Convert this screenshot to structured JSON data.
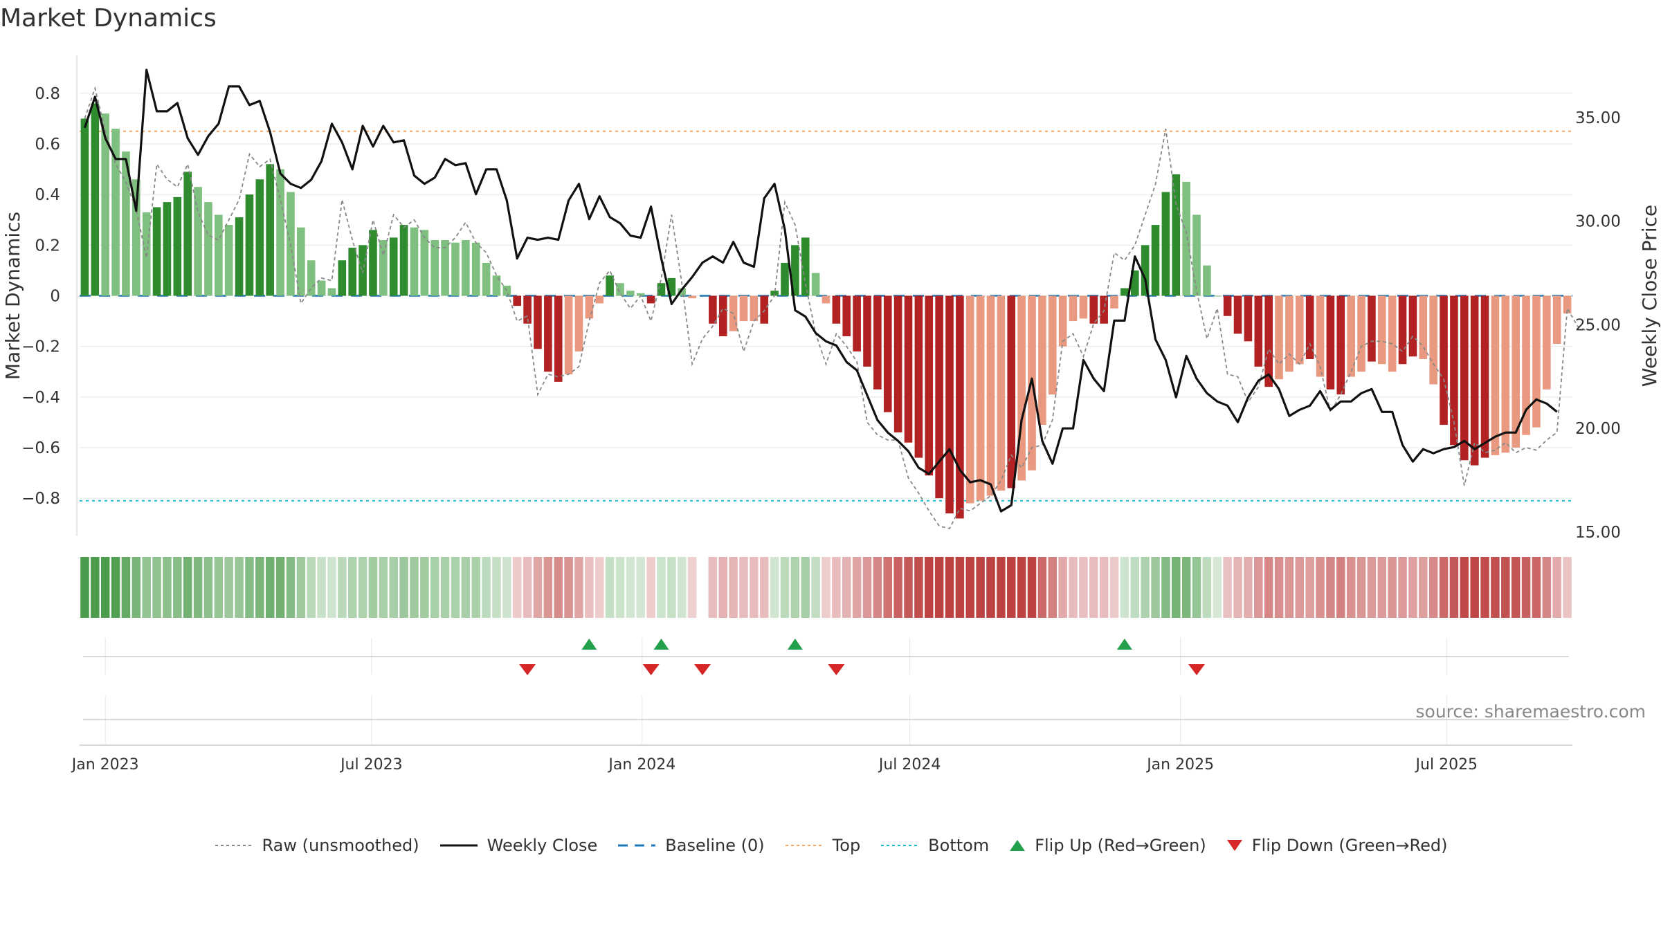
{
  "page": {
    "title": "Market Dynamics",
    "source": "source: sharemaestro.com"
  },
  "colors": {
    "strong_green": "#2e8b2e",
    "light_green": "#7fbf7f",
    "strong_red": "#b22222",
    "light_red": "#e8997f",
    "close_line": "#111111",
    "raw_line": "#888888",
    "baseline": "#1f77b4",
    "top": "#f4a460",
    "bottom": "#17becf",
    "flip_up": "#22a04b",
    "flip_down": "#d62728"
  },
  "legend": [
    {
      "key": "raw",
      "label": "Raw (unsmoothed)",
      "icon": "dotted-line-icon"
    },
    {
      "key": "close",
      "label": "Weekly Close",
      "icon": "solid-line-icon"
    },
    {
      "key": "baseline",
      "label": "Baseline (0)",
      "icon": "dashed-line-icon"
    },
    {
      "key": "top",
      "label": "Top",
      "icon": "dotted-line-icon"
    },
    {
      "key": "bottom",
      "label": "Bottom",
      "icon": "dotted-line-icon"
    },
    {
      "key": "flip_up",
      "label": "Flip Up (Red→Green)",
      "icon": "triangle-up-icon"
    },
    {
      "key": "flip_down",
      "label": "Flip Down (Green→Red)",
      "icon": "triangle-down-icon"
    }
  ],
  "chart_data": {
    "type": "bar",
    "y_axis_left": {
      "label": "Market Dynamics",
      "range": [
        -0.95,
        0.95
      ],
      "ticks": [
        0.8,
        0.6,
        0.4,
        0.2,
        0,
        -0.2,
        -0.4,
        -0.6,
        -0.8
      ],
      "tick_labels": [
        "0.8",
        "0.6",
        "0.4",
        "0.2",
        "0",
        "−0.2",
        "−0.4",
        "−0.6",
        "−0.8"
      ]
    },
    "y_axis_right": {
      "label": "Weekly Close Price",
      "range": [
        14.8,
        38.0
      ],
      "ticks": [
        35,
        30,
        25,
        20,
        15
      ],
      "tick_labels": [
        "35.00",
        "30.00",
        "25.00",
        "20.00",
        "15.00"
      ]
    },
    "x_axis": {
      "ticks": [
        "2023-01-01",
        "2023-07-01",
        "2024-01-01",
        "2024-07-01",
        "2025-01-01",
        "2025-07-01"
      ],
      "tick_labels": [
        "Jan 2023",
        "Jul 2023",
        "Jan 2024",
        "Jul 2024",
        "Jan 2025",
        "Jul 2025"
      ]
    },
    "reference_lines": {
      "baseline": 0,
      "top": 0.65,
      "bottom": -0.81
    },
    "weeks": {
      "first": "2022-12-18",
      "interval_days": 7,
      "count": 145,
      "missing_index": 60
    },
    "dynamics": [
      0.7,
      0.76,
      0.72,
      0.66,
      0.57,
      0.46,
      0.33,
      0.35,
      0.37,
      0.39,
      0.49,
      0.43,
      0.37,
      0.32,
      0.28,
      0.31,
      0.4,
      0.46,
      0.52,
      0.5,
      0.41,
      0.27,
      0.14,
      0.06,
      0.03,
      0.14,
      0.19,
      0.2,
      0.26,
      0.22,
      0.23,
      0.28,
      0.27,
      0.26,
      0.22,
      0.22,
      0.21,
      0.22,
      0.21,
      0.13,
      0.08,
      0.04,
      -0.04,
      -0.11,
      -0.21,
      -0.3,
      -0.34,
      -0.31,
      -0.22,
      -0.09,
      -0.03,
      0.08,
      0.05,
      0.02,
      0.01,
      -0.03,
      0.05,
      0.07,
      0.03,
      -0.01,
      0.0,
      -0.11,
      -0.16,
      -0.14,
      -0.1,
      -0.1,
      -0.11,
      0.02,
      0.13,
      0.2,
      0.23,
      0.09,
      -0.03,
      -0.11,
      -0.16,
      -0.22,
      -0.28,
      -0.37,
      -0.46,
      -0.54,
      -0.58,
      -0.64,
      -0.71,
      -0.8,
      -0.86,
      -0.88,
      -0.82,
      -0.81,
      -0.79,
      -0.77,
      -0.76,
      -0.73,
      -0.69,
      -0.51,
      -0.39,
      -0.2,
      -0.1,
      -0.09,
      -0.11,
      -0.11,
      -0.05,
      0.03,
      0.1,
      0.2,
      0.28,
      0.41,
      0.48,
      0.45,
      0.32,
      0.12,
      0.0,
      -0.08,
      -0.15,
      -0.18,
      -0.28,
      -0.36,
      -0.33,
      -0.3,
      -0.27,
      -0.25,
      -0.32,
      -0.37,
      -0.39,
      -0.32,
      -0.3,
      -0.26,
      -0.27,
      -0.3,
      -0.27,
      -0.24,
      -0.25,
      -0.35,
      -0.51,
      -0.59,
      -0.65,
      -0.67,
      -0.64,
      -0.63,
      -0.62,
      -0.6,
      -0.55,
      -0.52,
      -0.37,
      -0.19,
      -0.07
    ],
    "strength": [
      "S",
      "S",
      "L",
      "L",
      "L",
      "L",
      "L",
      "S",
      "S",
      "S",
      "S",
      "L",
      "L",
      "L",
      "L",
      "S",
      "S",
      "S",
      "S",
      "L",
      "L",
      "L",
      "L",
      "L",
      "L",
      "S",
      "S",
      "S",
      "S",
      "L",
      "S",
      "S",
      "L",
      "L",
      "L",
      "L",
      "L",
      "L",
      "L",
      "L",
      "L",
      "L",
      "S",
      "S",
      "S",
      "S",
      "S",
      "L",
      "L",
      "L",
      "L",
      "S",
      "L",
      "L",
      "L",
      "S",
      "S",
      "S",
      "L",
      "L",
      "L",
      "S",
      "S",
      "L",
      "L",
      "L",
      "S",
      "S",
      "S",
      "S",
      "S",
      "L",
      "L",
      "S",
      "S",
      "S",
      "S",
      "S",
      "S",
      "S",
      "S",
      "S",
      "S",
      "S",
      "S",
      "S",
      "L",
      "L",
      "L",
      "L",
      "S",
      "L",
      "L",
      "L",
      "L",
      "L",
      "L",
      "L",
      "S",
      "S",
      "L",
      "S",
      "S",
      "S",
      "S",
      "S",
      "S",
      "L",
      "L",
      "L",
      "L",
      "S",
      "S",
      "S",
      "S",
      "S",
      "L",
      "L",
      "L",
      "S",
      "L",
      "S",
      "S",
      "L",
      "L",
      "S",
      "L",
      "L",
      "S",
      "S",
      "L",
      "L",
      "S",
      "S",
      "S",
      "S",
      "S",
      "L",
      "L",
      "L",
      "L",
      "L",
      "L",
      "L",
      "L",
      "L"
    ],
    "raw": [
      0.7,
      0.82,
      0.65,
      0.52,
      0.45,
      0.34,
      0.15,
      0.52,
      0.46,
      0.43,
      0.52,
      0.33,
      0.24,
      0.22,
      0.3,
      0.38,
      0.56,
      0.51,
      0.54,
      0.38,
      0.2,
      -0.03,
      0.03,
      0.07,
      0.06,
      0.38,
      0.22,
      0.09,
      0.3,
      0.16,
      0.32,
      0.27,
      0.3,
      0.23,
      0.19,
      0.19,
      0.23,
      0.29,
      0.21,
      0.17,
      0.08,
      0.02,
      -0.1,
      -0.08,
      -0.39,
      -0.31,
      -0.32,
      -0.31,
      -0.28,
      -0.1,
      0.05,
      0.1,
      0.01,
      -0.05,
      0.0,
      -0.1,
      0.07,
      0.32,
      0.05,
      -0.27,
      -0.17,
      -0.12,
      -0.05,
      -0.07,
      -0.22,
      -0.1,
      -0.06,
      0.0,
      0.37,
      0.28,
      0.05,
      -0.15,
      -0.27,
      -0.15,
      -0.2,
      -0.26,
      -0.5,
      -0.55,
      -0.57,
      -0.57,
      -0.72,
      -0.78,
      -0.85,
      -0.91,
      -0.92,
      -0.84,
      -0.85,
      -0.82,
      -0.79,
      -0.73,
      -0.63,
      -0.68,
      -0.6,
      -0.59,
      -0.49,
      -0.18,
      -0.15,
      -0.24,
      -0.11,
      -0.06,
      0.17,
      0.14,
      0.2,
      0.32,
      0.44,
      0.66,
      0.36,
      0.25,
      0.02,
      -0.17,
      -0.05,
      -0.31,
      -0.32,
      -0.42,
      -0.36,
      -0.21,
      -0.27,
      -0.23,
      -0.27,
      -0.19,
      -0.28,
      -0.46,
      -0.39,
      -0.3,
      -0.2,
      -0.18,
      -0.18,
      -0.19,
      -0.22,
      -0.16,
      -0.2,
      -0.27,
      -0.33,
      -0.5,
      -0.75,
      -0.58,
      -0.62,
      -0.61,
      -0.58,
      -0.62,
      -0.6,
      -0.61,
      -0.57,
      -0.54,
      -0.05,
      -0.12,
      -0.14
    ],
    "close": [
      34.5,
      36.0,
      34.0,
      33.0,
      33.0,
      30.5,
      37.3,
      35.3,
      35.3,
      35.7,
      34.0,
      33.2,
      34.1,
      34.7,
      36.5,
      36.5,
      35.6,
      35.8,
      34.3,
      32.3,
      31.8,
      31.6,
      32.0,
      32.9,
      34.7,
      33.8,
      32.5,
      34.6,
      33.6,
      34.6,
      33.8,
      33.9,
      32.2,
      31.8,
      32.1,
      33.0,
      32.7,
      32.8,
      31.3,
      32.5,
      32.5,
      31.0,
      28.2,
      29.2,
      29.1,
      29.2,
      29.1,
      31.0,
      31.8,
      30.1,
      31.2,
      30.2,
      29.9,
      29.3,
      29.2,
      30.7,
      28.2,
      26.0,
      26.7,
      27.3,
      28.0,
      28.3,
      28.0,
      29.0,
      28.0,
      27.8,
      31.1,
      31.8,
      29.6,
      25.7,
      25.4,
      24.6,
      24.2,
      24.0,
      23.2,
      22.8,
      21.6,
      20.4,
      19.8,
      19.4,
      18.9,
      18.1,
      17.8,
      18.4,
      19.0,
      18.0,
      17.4,
      17.5,
      17.3,
      16.0,
      16.3,
      20.4,
      22.4,
      19.4,
      18.3,
      20.0,
      20.0,
      23.3,
      22.4,
      21.8,
      25.2,
      25.2,
      28.3,
      27.2,
      24.3,
      23.3,
      21.5,
      23.5,
      22.4,
      21.7,
      21.3,
      21.1,
      20.3,
      21.5,
      22.3,
      22.6,
      21.9,
      20.6,
      20.9,
      21.1,
      21.8,
      20.9,
      21.3,
      21.3,
      21.7,
      21.9,
      20.8,
      20.8,
      19.2,
      18.4,
      19.0,
      18.8,
      19.0,
      19.1,
      19.4,
      19.0,
      19.3,
      19.6,
      19.8,
      19.8,
      20.9,
      21.4,
      21.2,
      20.8
    ],
    "flip_up_dates": [
      "2023-11-26",
      "2024-01-14",
      "2024-04-14",
      "2024-11-24"
    ],
    "flip_down_dates": [
      "2023-10-15",
      "2024-01-07",
      "2024-02-11",
      "2024-05-12",
      "2025-01-12"
    ]
  }
}
